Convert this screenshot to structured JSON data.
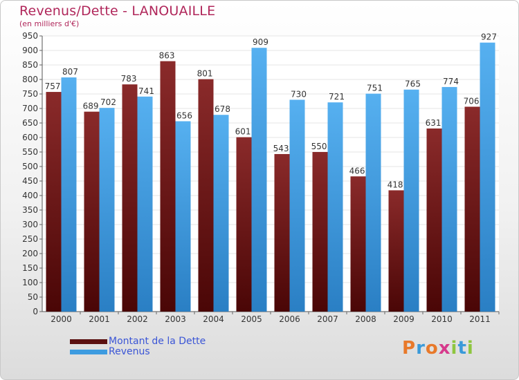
{
  "title": "Revenus/Dette - LANOUAILLE",
  "subtitle": "(en milliers d'€)",
  "chart_data": {
    "type": "bar",
    "title": "Revenus/Dette - LANOUAILLE",
    "subtitle": "(en milliers d'€)",
    "categories": [
      "2000",
      "2001",
      "2002",
      "2003",
      "2004",
      "2005",
      "2006",
      "2007",
      "2008",
      "2009",
      "2010",
      "2011"
    ],
    "series": [
      {
        "name": "Montant de la Dette",
        "color": "#7a1c1c",
        "values": [
          757,
          689,
          783,
          863,
          801,
          601,
          543,
          550,
          466,
          418,
          631,
          706
        ]
      },
      {
        "name": "Revenus",
        "color": "#3d9be0",
        "values": [
          807,
          702,
          741,
          656,
          678,
          909,
          730,
          721,
          751,
          765,
          774,
          927
        ]
      }
    ],
    "ylim": [
      0,
      950
    ],
    "yticks": [
      0,
      50,
      100,
      150,
      200,
      250,
      300,
      350,
      400,
      450,
      500,
      550,
      600,
      650,
      700,
      750,
      800,
      850,
      900,
      950
    ],
    "grid": true,
    "legend_position": "bottom-left"
  },
  "legend": [
    {
      "label": "Montant de la Dette",
      "color": "#7a1c1c"
    },
    {
      "label": "Revenus",
      "color": "#3d9be0"
    }
  ],
  "logo": {
    "letters": [
      "P",
      "r",
      "o",
      "x",
      "i",
      "t",
      "i"
    ],
    "colors": [
      "#e8792a",
      "#3a9ad9",
      "#e8792a",
      "#d63a8c",
      "#8ec63f",
      "#3a9ad9",
      "#8ec63f"
    ]
  }
}
